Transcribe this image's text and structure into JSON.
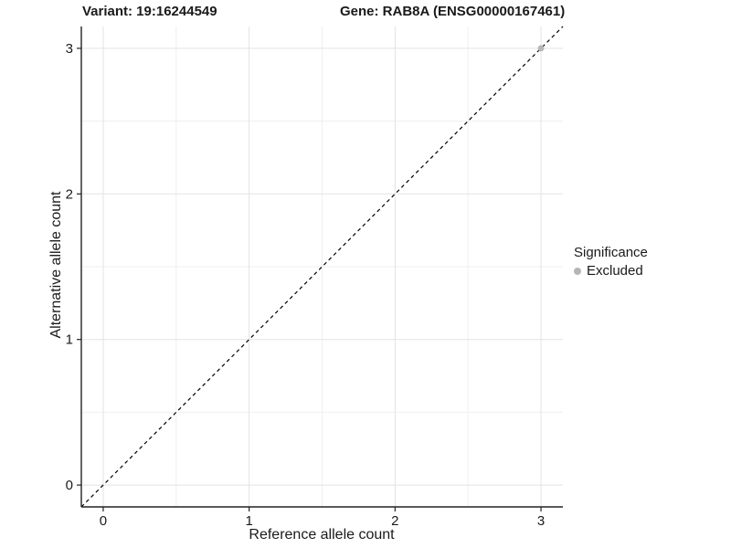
{
  "chart_data": {
    "type": "scatter",
    "title_left": "Variant: 19:16244549",
    "title_right": "Gene: RAB8A (ENSG00000167461)",
    "xlabel": "Reference allele count",
    "ylabel": "Alternative allele count",
    "xlim": [
      -0.15,
      3.15
    ],
    "ylim": [
      -0.15,
      3.15
    ],
    "xticks": [
      0,
      1,
      2,
      3
    ],
    "yticks": [
      0,
      1,
      2,
      3
    ],
    "minor_breaks": [
      0.5,
      1.5,
      2.5
    ],
    "grid": true,
    "reference_line": {
      "kind": "abline",
      "slope": 1,
      "intercept": 0,
      "style": "dashed",
      "color": "#000000"
    },
    "series": [
      {
        "name": "Excluded",
        "color": "#b5b5b5",
        "points": [
          {
            "x": 3,
            "y": 3
          }
        ]
      }
    ],
    "legend": {
      "title": "Significance",
      "position": "right",
      "items": [
        {
          "label": "Excluded",
          "color": "#b5b5b5"
        }
      ]
    },
    "colors": {
      "grid_major": "#e3e3e3",
      "grid_minor": "#efefef",
      "axis_line": "#222222",
      "tick_text": "#1a1a1a",
      "background": "#ffffff"
    }
  }
}
